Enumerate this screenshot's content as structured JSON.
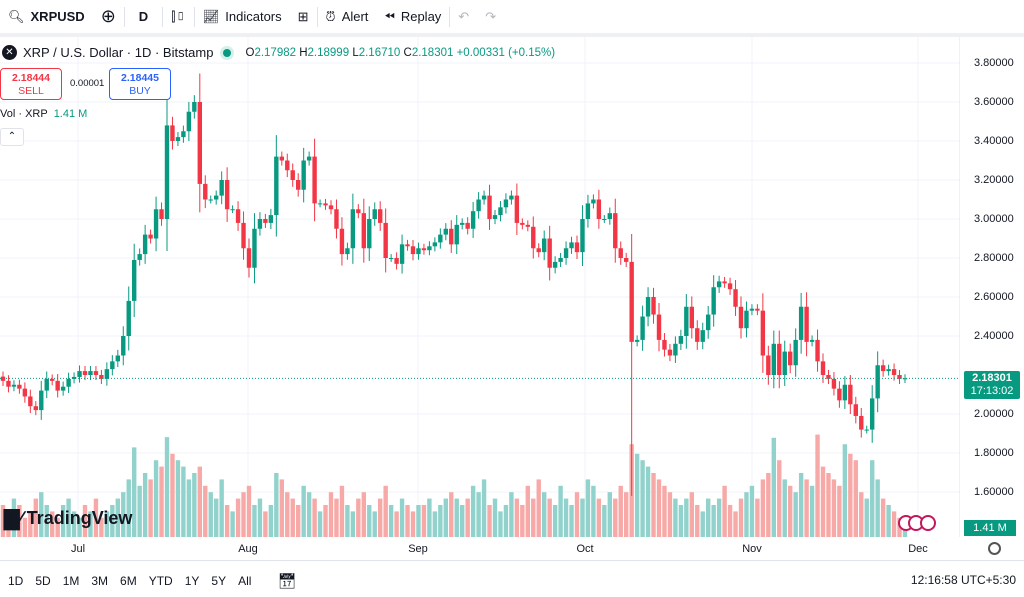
{
  "toolbar": {
    "symbol": "XRPUSD",
    "interval": "D",
    "indicators": "Indicators",
    "alert": "Alert",
    "replay": "Replay"
  },
  "legend": {
    "title": "XRP / U.S. Dollar · 1D · Bitstamp",
    "o_label": "O",
    "o": "2.17982",
    "h_label": "H",
    "h": "2.18999",
    "l_label": "L",
    "l": "2.16710",
    "c_label": "C",
    "c": "2.18301",
    "change": "+0.00331 (+0.15%)"
  },
  "trade": {
    "sell_price": "2.18444",
    "sell_label": "SELL",
    "spread": "0.00001",
    "buy_price": "2.18445",
    "buy_label": "BUY"
  },
  "volume": {
    "label": "Vol · XRP",
    "value": "1.41 M",
    "axis_label": "1.41 M"
  },
  "current": {
    "price": "2.18301",
    "countdown": "17:13:02"
  },
  "time_axis": [
    "Jul",
    "Aug",
    "Sep",
    "Oct",
    "Nov",
    "Dec"
  ],
  "ranges": [
    "1D",
    "5D",
    "1M",
    "3M",
    "6M",
    "YTD",
    "1Y",
    "5Y",
    "All"
  ],
  "clock": "12:16:58 UTC+5:30",
  "brand": "TradingView",
  "colors": {
    "up": "#089981",
    "down": "#f23645",
    "up_vol": "#92d2cc",
    "down_vol": "#f7a9a7"
  },
  "chart_data": {
    "type": "candlestick",
    "price_ticks": [
      "3.80000",
      "3.60000",
      "3.40000",
      "3.20000",
      "3.00000",
      "2.80000",
      "2.60000",
      "2.40000",
      "2.00000",
      "1.80000",
      "1.60000"
    ],
    "ylim": [
      1.45,
      3.85
    ],
    "grid": true,
    "closes": [
      2.17,
      2.14,
      2.15,
      2.13,
      2.09,
      2.04,
      2.02,
      2.12,
      2.18,
      2.17,
      2.12,
      2.14,
      2.18,
      2.19,
      2.22,
      2.2,
      2.22,
      2.2,
      2.18,
      2.23,
      2.27,
      2.3,
      2.4,
      2.58,
      2.79,
      2.82,
      2.92,
      2.9,
      3.05,
      3.0,
      3.48,
      3.4,
      3.42,
      3.45,
      3.55,
      3.6,
      3.18,
      3.1,
      3.1,
      3.12,
      3.2,
      3.05,
      3.05,
      2.98,
      2.85,
      2.75,
      2.95,
      3.0,
      2.98,
      3.02,
      3.32,
      3.3,
      3.25,
      3.2,
      3.15,
      3.3,
      3.32,
      3.08,
      3.08,
      3.07,
      3.05,
      2.95,
      2.82,
      2.85,
      3.05,
      3.03,
      2.85,
      3.0,
      3.05,
      2.98,
      2.8,
      2.8,
      2.77,
      2.87,
      2.86,
      2.82,
      2.85,
      2.84,
      2.86,
      2.88,
      2.92,
      2.95,
      2.87,
      2.97,
      2.98,
      2.95,
      3.04,
      3.1,
      3.12,
      3.0,
      3.02,
      3.06,
      3.1,
      3.12,
      2.98,
      2.97,
      2.96,
      2.85,
      2.83,
      2.9,
      2.75,
      2.78,
      2.8,
      2.85,
      2.88,
      2.83,
      3.0,
      3.08,
      3.1,
      3.0,
      3.0,
      3.03,
      2.85,
      2.8,
      2.78,
      2.37,
      2.38,
      2.5,
      2.6,
      2.51,
      2.38,
      2.33,
      2.3,
      2.36,
      2.4,
      2.55,
      2.44,
      2.37,
      2.43,
      2.51,
      2.65,
      2.68,
      2.67,
      2.64,
      2.55,
      2.44,
      2.53,
      2.54,
      2.53,
      2.3,
      2.2,
      2.36,
      2.2,
      2.32,
      2.25,
      2.38,
      2.55,
      2.37,
      2.38,
      2.27,
      2.2,
      2.18,
      2.13,
      2.07,
      2.15,
      2.05,
      1.99,
      1.92,
      1.92,
      2.08,
      2.25,
      2.22,
      2.23,
      2.2,
      2.18,
      2.18301
    ],
    "notable_lows": {
      "115": 1.58
    },
    "volumes_millions": [
      5,
      4,
      6,
      5,
      3,
      4,
      6,
      7,
      5,
      4,
      3,
      5,
      6,
      4,
      3,
      5,
      4,
      6,
      3,
      4,
      5,
      6,
      7,
      9,
      14,
      8,
      10,
      9,
      12,
      11,
      15.6,
      13,
      12,
      11,
      9,
      10,
      11,
      8,
      7,
      6,
      9,
      5,
      4,
      6,
      7,
      8,
      5,
      6,
      4,
      5,
      10,
      9,
      7,
      6,
      5,
      8,
      7,
      6,
      4,
      5,
      7,
      6,
      8,
      5,
      4,
      6,
      7,
      5,
      4,
      6,
      8,
      5,
      4,
      6,
      5,
      4,
      5,
      5,
      6,
      4,
      5,
      6,
      7,
      6,
      5,
      6,
      8,
      7,
      9,
      5,
      6,
      4,
      5,
      7,
      6,
      5,
      8,
      6,
      9,
      7,
      6,
      5,
      8,
      6,
      5,
      7,
      6,
      9,
      8,
      6,
      5,
      7,
      6,
      8,
      7,
      14.5,
      13,
      12,
      11,
      10,
      9,
      8,
      7,
      6,
      5,
      6,
      7,
      5,
      4,
      6,
      5,
      6,
      8,
      5,
      4,
      6,
      7,
      8,
      6,
      9,
      10,
      15.5,
      12,
      9,
      8,
      7,
      10,
      9,
      8,
      16,
      11,
      10,
      9,
      8,
      14.5,
      13,
      12,
      7,
      6,
      12,
      9,
      6,
      5,
      4,
      3,
      1.41
    ]
  }
}
